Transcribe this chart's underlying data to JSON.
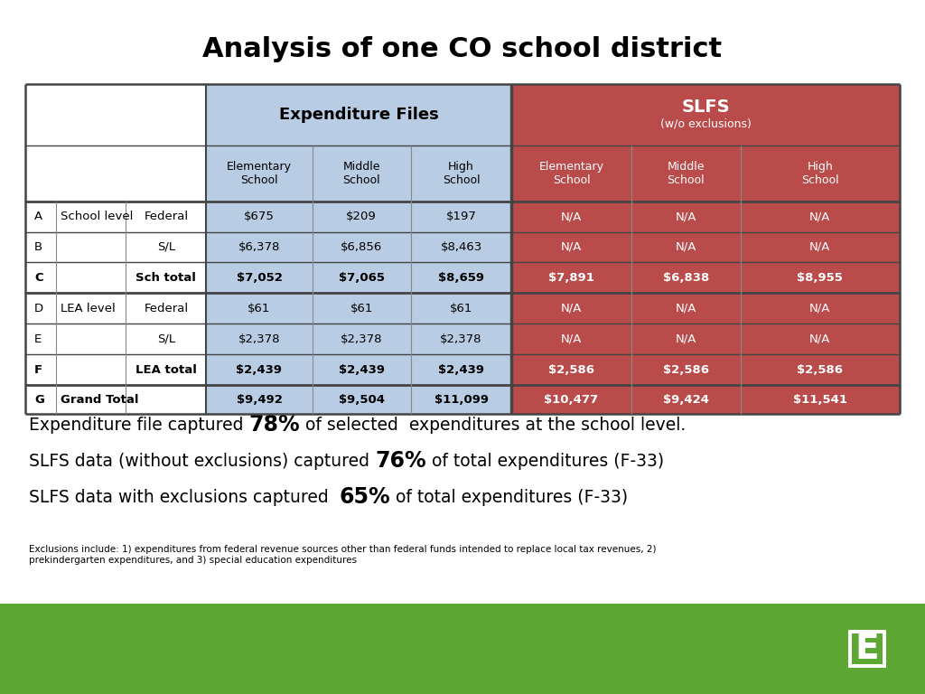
{
  "title": "Analysis of one CO school district",
  "title_fontsize": 22,
  "bg_color": "#ffffff",
  "green_bar_color": "#5da832",
  "table": {
    "blue_header_color": "#b8cce4",
    "red_header_color": "#b94b4b",
    "white_cell_color": "#ffffff",
    "border_color": "#444444",
    "col_header1": "Expenditure Files",
    "col_header2_line1": "SLFS",
    "col_header2_line2": "(w/o exclusions)",
    "sub_headers": [
      "Elementary\nSchool",
      "Middle\nSchool",
      "High\nSchool",
      "Elementary\nSchool",
      "Middle\nSchool",
      "High\nSchool"
    ],
    "row_labels": [
      [
        "A",
        "School level",
        "Federal"
      ],
      [
        "B",
        "",
        "S/L"
      ],
      [
        "C",
        "",
        "Sch total"
      ],
      [
        "D",
        "LEA level",
        "Federal"
      ],
      [
        "E",
        "",
        "S/L"
      ],
      [
        "F",
        "",
        "LEA total"
      ],
      [
        "G",
        "Grand Total",
        ""
      ]
    ],
    "values": [
      [
        "$675",
        "$209",
        "$197",
        "N/A",
        "N/A",
        "N/A"
      ],
      [
        "$6,378",
        "$6,856",
        "$8,463",
        "N/A",
        "N/A",
        "N/A"
      ],
      [
        "$7,052",
        "$7,065",
        "$8,659",
        "$7,891",
        "$6,838",
        "$8,955"
      ],
      [
        "$61",
        "$61",
        "$61",
        "N/A",
        "N/A",
        "N/A"
      ],
      [
        "$2,378",
        "$2,378",
        "$2,378",
        "N/A",
        "N/A",
        "N/A"
      ],
      [
        "$2,439",
        "$2,439",
        "$2,439",
        "$2,586",
        "$2,586",
        "$2,586"
      ],
      [
        "$9,492",
        "$9,504",
        "$11,099",
        "$10,477",
        "$9,424",
        "$11,541"
      ]
    ],
    "bold_rows": [
      2,
      5,
      6
    ]
  },
  "bullets": [
    {
      "pre": "Expenditure file captured ",
      "bold": "78%",
      "post": " of selected  expenditures at the school level."
    },
    {
      "pre": "SLFS data (without exclusions) captured ",
      "bold": "76%",
      "post": " of total expenditures (F-33)"
    },
    {
      "pre": "SLFS data with exclusions captured  ",
      "bold": "65%",
      "post": " of total expenditures (F-33)"
    }
  ],
  "footnote": "Exclusions include: 1) expenditures from federal revenue sources other than federal funds intended to replace local tax revenues, 2)\nprekindergarten expenditures, and 3) special education expenditures",
  "logo_color": "#5da832"
}
